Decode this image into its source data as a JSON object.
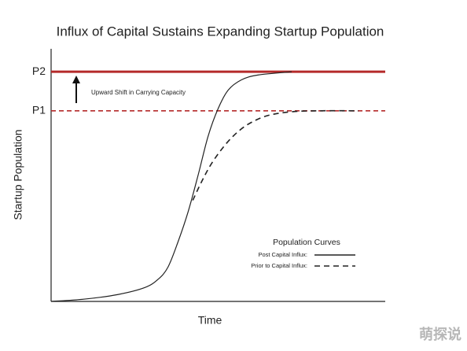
{
  "chart_data": {
    "type": "line",
    "title": "Influx of Capital Sustains Expanding Startup Population",
    "x_label": "Time",
    "y_label": "Startup Population",
    "xlim": [
      0,
      100
    ],
    "ylim": [
      0,
      110
    ],
    "yticks": [
      {
        "value": 83,
        "label": "P1",
        "line": "dashed"
      },
      {
        "value": 100,
        "label": "P2",
        "line": "solid"
      }
    ],
    "tick_line_color": "#b52a2a",
    "annotation": "Upward Shift in Carrying Capacity",
    "legend_title": "Population Curves",
    "series": [
      {
        "name": "Post Capital Influx:",
        "color": "#222222",
        "dash": "solid",
        "x": [
          0,
          10,
          20,
          28,
          32,
          35,
          38,
          41,
          44,
          47,
          50,
          53,
          57,
          62,
          72
        ],
        "values": [
          0,
          1,
          3,
          6,
          9.6,
          15,
          26,
          39,
          55,
          72,
          84,
          92,
          96.5,
          98.6,
          100
        ]
      },
      {
        "name": "Prior to Capital Influx:",
        "color": "#222222",
        "dash": "dashed",
        "x": [
          42.4,
          45,
          48,
          52,
          56,
          60,
          65,
          72,
          80,
          92
        ],
        "values": [
          44,
          52,
          60,
          68,
          74,
          78,
          81,
          82.6,
          83,
          83
        ]
      }
    ],
    "watermark": "萌探说"
  }
}
